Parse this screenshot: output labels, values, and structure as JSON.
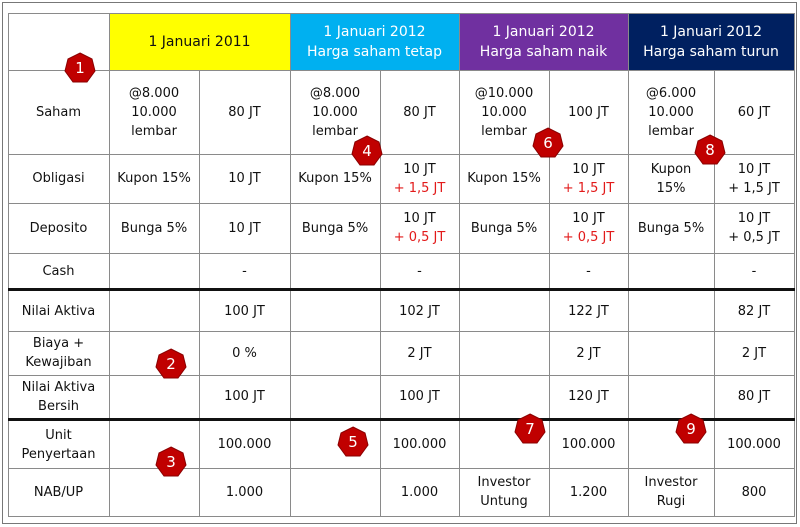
{
  "colors": {
    "header_2011": "#ffff00",
    "header_tetap": "#00b0f0",
    "header_naik": "#7030a0",
    "header_turun": "#002060",
    "increment_red": "#e21a1a",
    "badge_red": "#c00000"
  },
  "headers": {
    "h2011": "1 Januari 2011",
    "tetap": "1 Januari 2012\nHarga saham tetap",
    "naik": "1 Januari 2012\nHarga saham naik",
    "turun": "1 Januari 2012\nHarga saham turun"
  },
  "row_labels": {
    "saham": "Saham",
    "obligasi": "Obligasi",
    "deposito": "Deposito",
    "cash": "Cash",
    "nilai_aktiva": "Nilai Aktiva",
    "biaya": "Biaya +\nKewajiban",
    "nab": "Nilai Aktiva\nBersih",
    "unit": "Unit\nPenyertaan",
    "nab_up": "NAB/UP"
  },
  "col2011": {
    "saham_detail": "@8.000\n10.000\nlembar",
    "saham_value": "80 JT",
    "obligasi_detail": "Kupon 15%",
    "obligasi_value": "10 JT",
    "deposito_detail": "Bunga 5%",
    "deposito_value": "10 JT",
    "cash_value": "-",
    "nilai_aktiva": "100 JT",
    "biaya": "0 %",
    "nab": "100 JT",
    "unit": "100.000",
    "nab_up": "1.000"
  },
  "tetap": {
    "saham_detail": "@8.000\n10.000\nlembar",
    "saham_value": "80 JT",
    "obligasi_detail": "Kupon 15%",
    "obligasi_value": "10 JT",
    "obligasi_increment": "+ 1,5 JT",
    "deposito_detail": "Bunga 5%",
    "deposito_value": "10 JT",
    "deposito_increment": "+ 0,5 JT",
    "cash_value": "-",
    "nilai_aktiva": "102 JT",
    "biaya": "2 JT",
    "nab": "100 JT",
    "unit": "100.000",
    "nab_up": "1.000"
  },
  "naik": {
    "saham_detail": "@10.000\n10.000\nlembar",
    "saham_value": "100 JT",
    "obligasi_detail": "Kupon 15%",
    "obligasi_value": "10 JT",
    "obligasi_increment": "+ 1,5 JT",
    "deposito_detail": "Bunga 5%",
    "deposito_value": "10 JT",
    "deposito_increment": "+ 0,5 JT",
    "cash_value": "-",
    "nilai_aktiva": "122 JT",
    "biaya": "2 JT",
    "nab": "120 JT",
    "unit": "100.000",
    "investor_note": "Investor\nUntung",
    "nab_up": "1.200"
  },
  "turun": {
    "saham_detail": "@6.000\n10.000\nlembar",
    "saham_value": "60 JT",
    "obligasi_detail": "Kupon\n15%",
    "obligasi_value": "10 JT\n+ 1,5 JT",
    "deposito_detail": "Bunga 5%",
    "deposito_value": "10 JT\n+ 0,5 JT",
    "cash_value": "-",
    "nilai_aktiva": "82 JT",
    "biaya": "2 JT",
    "nab": "80 JT",
    "unit": "100.000",
    "investor_note": "Investor\nRugi",
    "nab_up": "800"
  },
  "badges": [
    "1",
    "2",
    "3",
    "4",
    "5",
    "6",
    "7",
    "8",
    "9"
  ]
}
